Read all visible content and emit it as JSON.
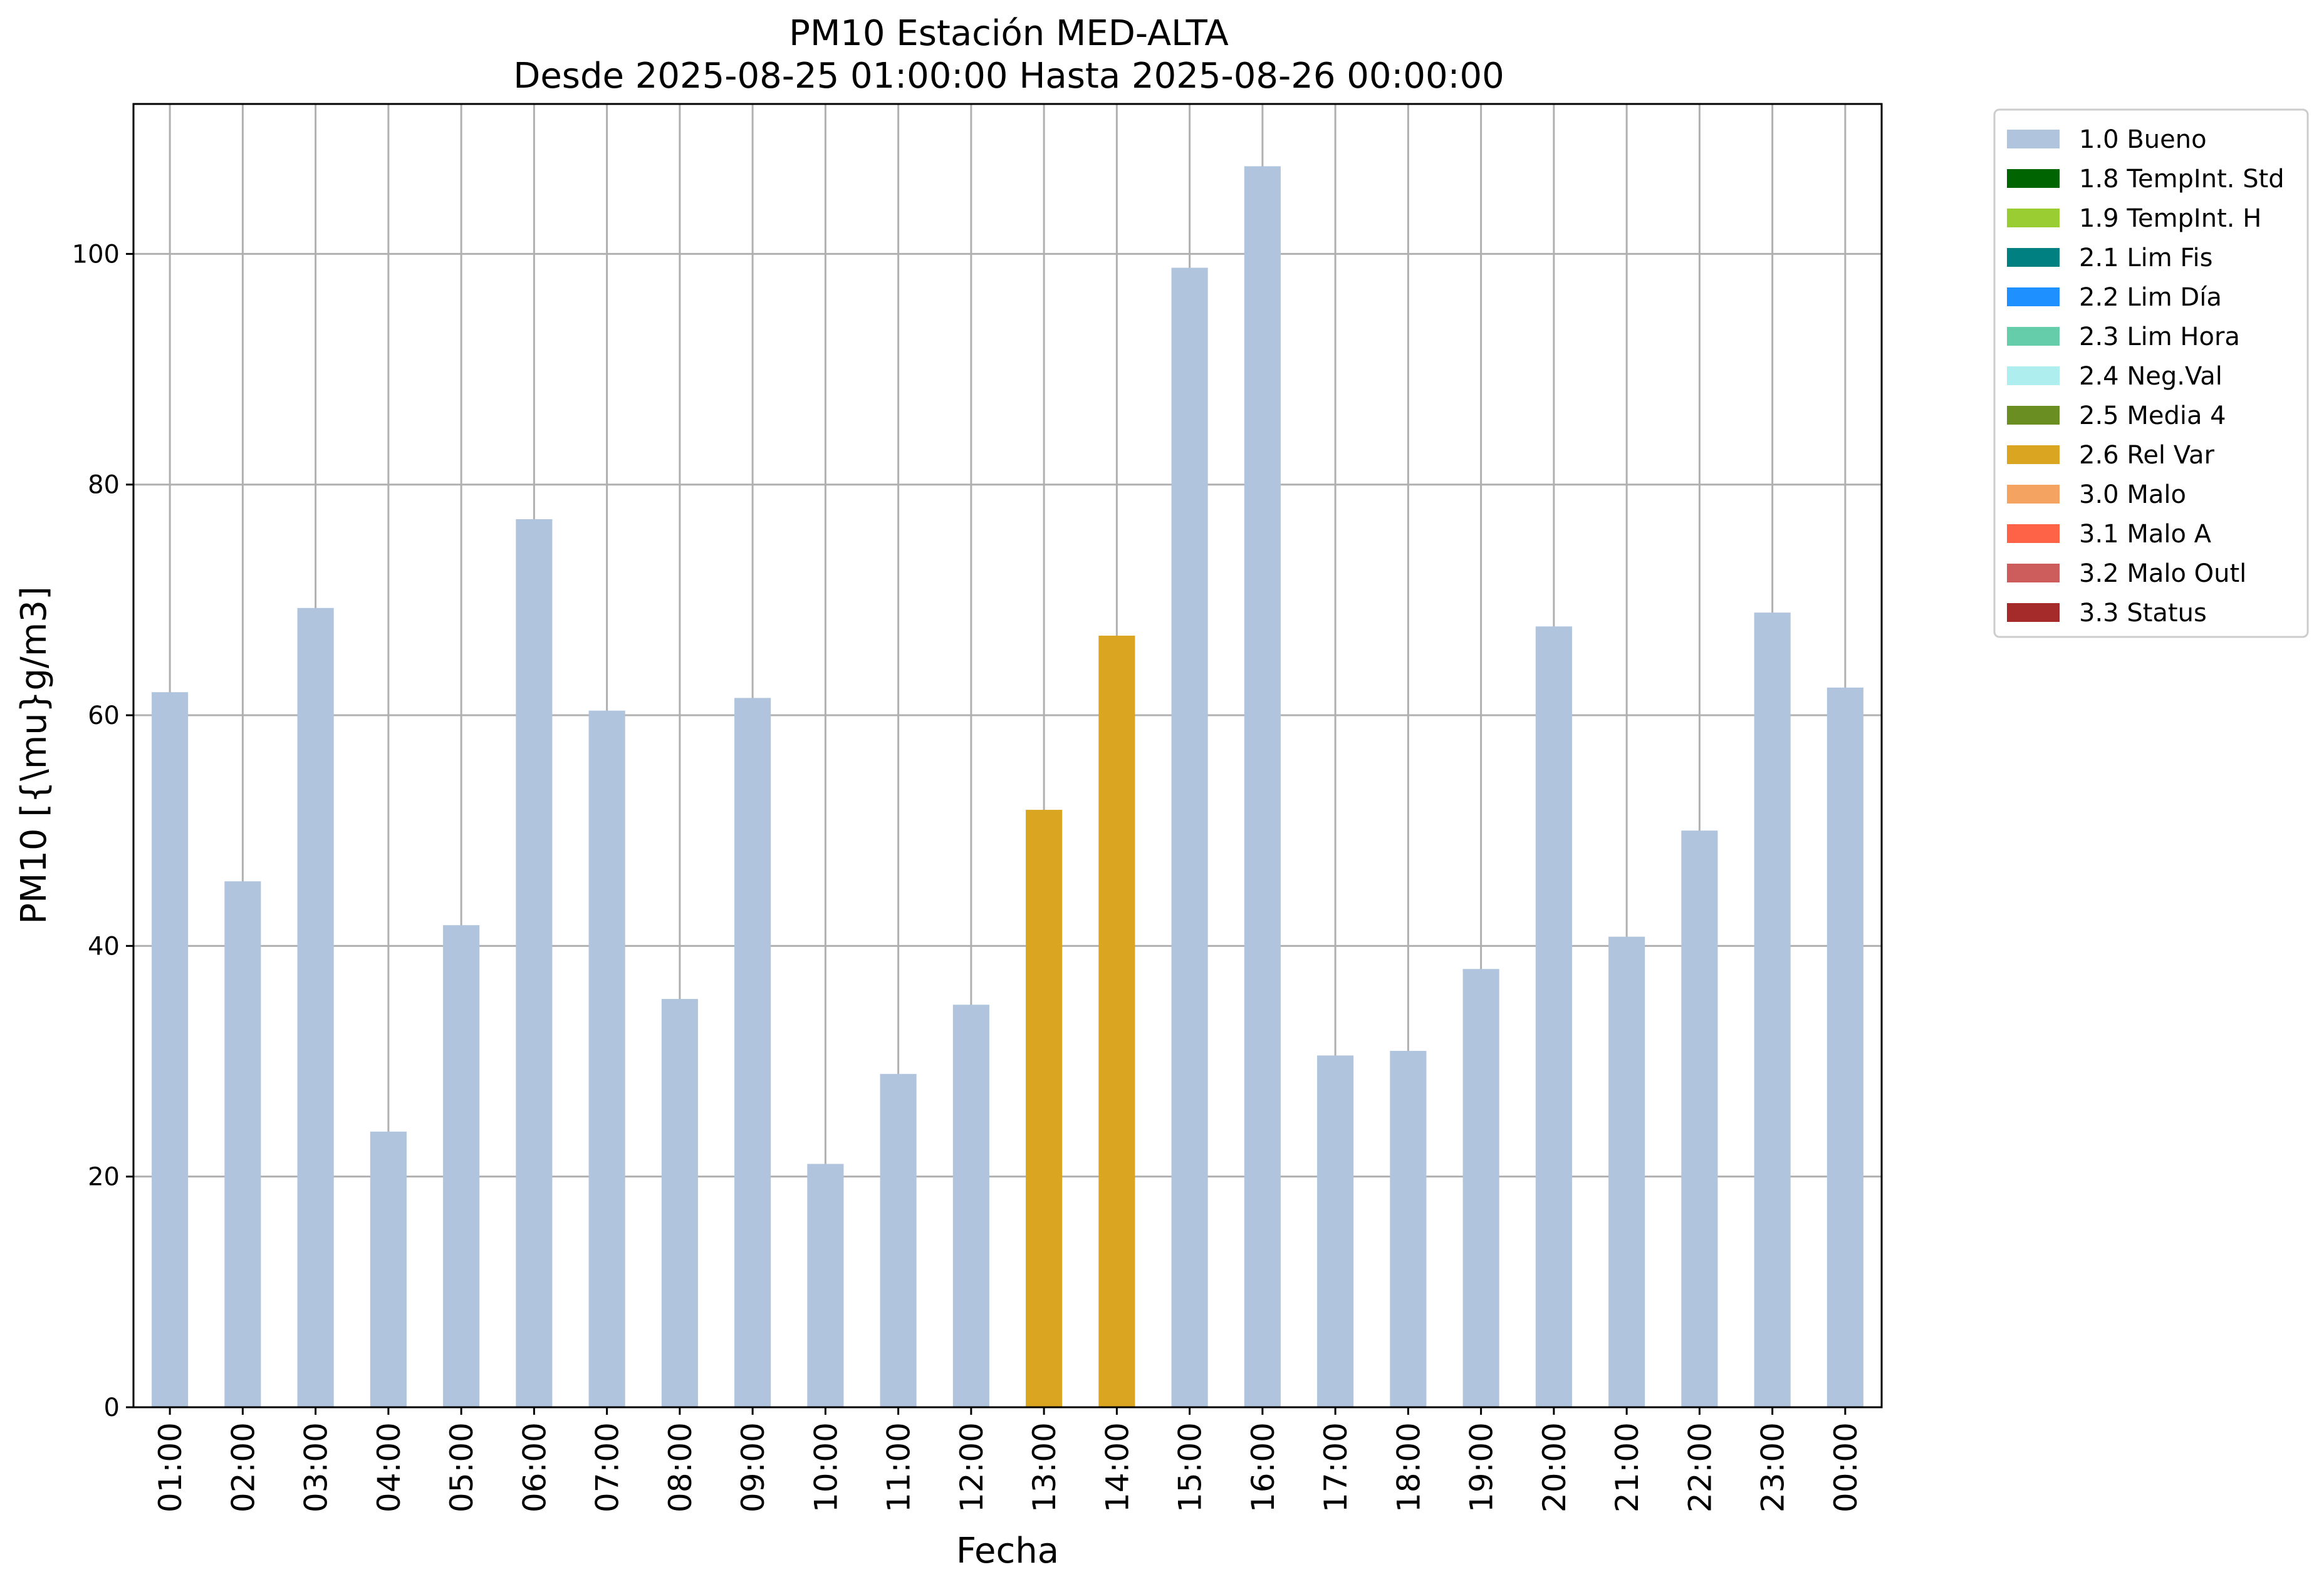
{
  "chart_data": {
    "type": "bar",
    "title": "PM10 Estación MED-ALTA",
    "subtitle": "Desde 2025-08-25 01:00:00 Hasta 2025-08-26 00:00:00",
    "xlabel": "Fecha",
    "ylabel": "PM10 [{\\mu}g/m3]",
    "ylim": [
      0,
      113
    ],
    "yticks": [
      0,
      20,
      40,
      60,
      80,
      100
    ],
    "grid": true,
    "legend_position": "outside-top-right",
    "categories": [
      "01:00",
      "02:00",
      "03:00",
      "04:00",
      "05:00",
      "06:00",
      "07:00",
      "08:00",
      "09:00",
      "10:00",
      "11:00",
      "12:00",
      "13:00",
      "14:00",
      "15:00",
      "16:00",
      "17:00",
      "18:00",
      "19:00",
      "20:00",
      "21:00",
      "22:00",
      "23:00",
      "00:00"
    ],
    "values": [
      62.0,
      45.6,
      69.3,
      23.9,
      41.8,
      77.0,
      60.4,
      35.4,
      61.5,
      21.1,
      28.9,
      34.9,
      51.8,
      66.9,
      98.8,
      107.6,
      30.5,
      30.9,
      38.0,
      67.7,
      40.8,
      50.0,
      68.9,
      62.4
    ],
    "flags": [
      "1.0 Bueno",
      "1.0 Bueno",
      "1.0 Bueno",
      "1.0 Bueno",
      "1.0 Bueno",
      "1.0 Bueno",
      "1.0 Bueno",
      "1.0 Bueno",
      "1.0 Bueno",
      "1.0 Bueno",
      "1.0 Bueno",
      "1.0 Bueno",
      "2.6 Rel Var",
      "2.6 Rel Var",
      "1.0 Bueno",
      "1.0 Bueno",
      "1.0 Bueno",
      "1.0 Bueno",
      "1.0 Bueno",
      "1.0 Bueno",
      "1.0 Bueno",
      "1.0 Bueno",
      "1.0 Bueno",
      "1.0 Bueno"
    ],
    "legend": [
      {
        "label": "1.0 Bueno",
        "color": "#b0c4de"
      },
      {
        "label": "1.8 TempInt. Std",
        "color": "#006400"
      },
      {
        "label": "1.9 TempInt. H",
        "color": "#9acd32"
      },
      {
        "label": "2.1 Lim Fis",
        "color": "#008080"
      },
      {
        "label": "2.2 Lim Día",
        "color": "#1e90ff"
      },
      {
        "label": "2.3 Lim Hora",
        "color": "#66cdaa"
      },
      {
        "label": "2.4 Neg.Val",
        "color": "#afeeee"
      },
      {
        "label": "2.5 Media 4",
        "color": "#6b8e23"
      },
      {
        "label": "2.6 Rel Var",
        "color": "#daa520"
      },
      {
        "label": "3.0 Malo",
        "color": "#f4a460"
      },
      {
        "label": "3.1 Malo A",
        "color": "#ff6347"
      },
      {
        "label": "3.2 Malo Outl",
        "color": "#cd5c5c"
      },
      {
        "label": "3.3 Status",
        "color": "#a52a2a"
      }
    ]
  }
}
